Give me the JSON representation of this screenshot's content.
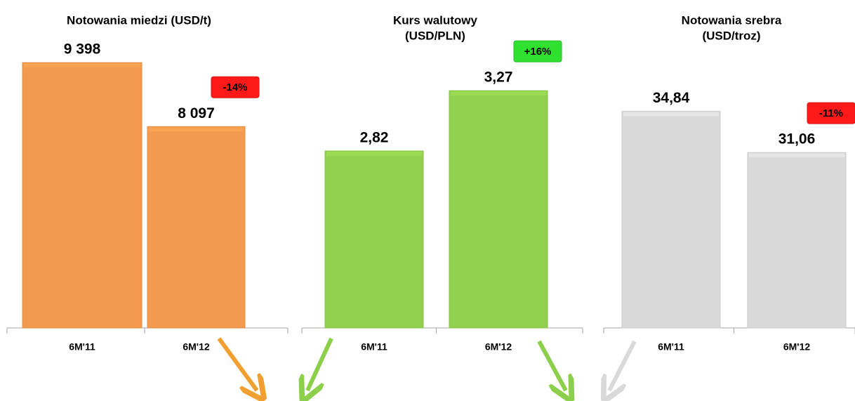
{
  "chart_data": [
    {
      "type": "bar",
      "title": [
        "Notowania miedzi (USD/t)"
      ],
      "categories": [
        "6M'11",
        "6M'12"
      ],
      "values": [
        9398,
        8097
      ],
      "value_labels": [
        "9 398",
        "8 097"
      ],
      "color": "#f39a4f",
      "ylim": [
        4000,
        10000
      ],
      "annotation": {
        "text": "-14%",
        "color": "#ff1a1a"
      }
    },
    {
      "type": "bar",
      "title": [
        "Kurs walutowy",
        "(USD/PLN)"
      ],
      "categories": [
        "6M'11",
        "6M'12"
      ],
      "values": [
        2.82,
        3.27
      ],
      "value_labels": [
        "2,82",
        "3,27"
      ],
      "color": "#92d050",
      "ylim": [
        1.5,
        3.7
      ],
      "annotation": {
        "text": "+16%",
        "color": "#2fe02f"
      }
    },
    {
      "type": "bar",
      "title": [
        "Notowania srebra",
        "(USD/troz)"
      ],
      "categories": [
        "6M'11",
        "6M'12"
      ],
      "values": [
        34.84,
        31.06
      ],
      "value_labels": [
        "34,84",
        "31,06"
      ],
      "color": "#d9d9d9",
      "ylim": [
        15,
        42
      ],
      "annotation": {
        "text": "-11%",
        "color": "#ff1a1a"
      }
    }
  ]
}
